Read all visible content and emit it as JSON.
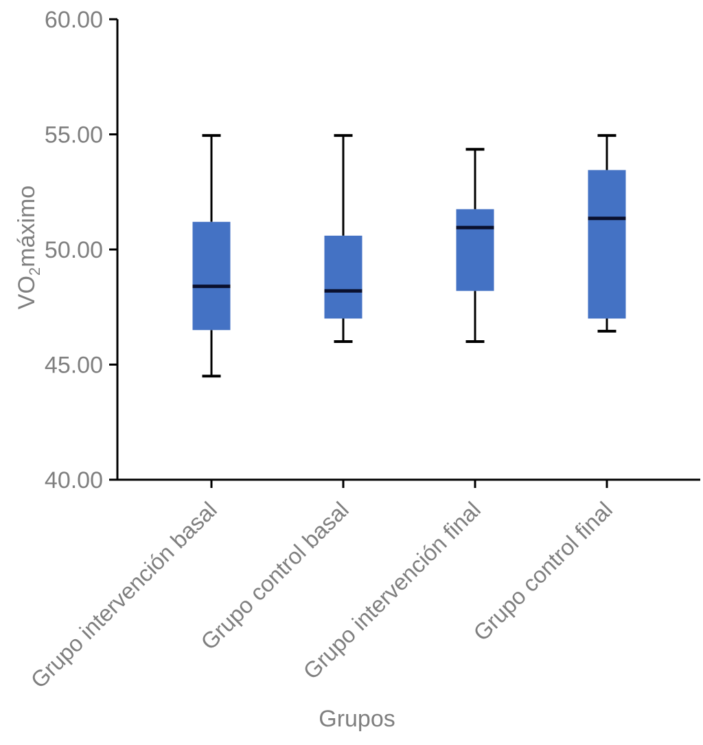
{
  "figure": {
    "background": "#FFFFFF"
  },
  "chart_data": {
    "type": "boxplot",
    "title": "",
    "xlabel": "Grupos",
    "ylabel": "VO₂máximo",
    "ylabel_parts": {
      "prefix": "VO",
      "subscript": "2",
      "suffix": "máximo"
    },
    "ylim": [
      40,
      60
    ],
    "yticks": [
      60,
      55,
      50,
      45,
      40
    ],
    "ytick_labels": [
      "60.00",
      "55.00",
      "50.00",
      "45.00",
      "40.00"
    ],
    "categories": [
      "Grupo intervención basal",
      "Grupo control basal",
      "Grupo intervención final",
      "Grupo control final"
    ],
    "boxes": [
      {
        "category": "Grupo intervención basal",
        "min": 44.5,
        "q1": 46.5,
        "median": 48.4,
        "q3": 51.2,
        "max": 54.95
      },
      {
        "category": "Grupo control basal",
        "min": 46.0,
        "q1": 47.0,
        "median": 48.2,
        "q3": 50.6,
        "max": 54.95
      },
      {
        "category": "Grupo intervención final",
        "min": 46.0,
        "q1": 48.2,
        "median": 50.95,
        "q3": 51.75,
        "max": 54.35
      },
      {
        "category": "Grupo control final",
        "min": 46.45,
        "q1": 47.0,
        "median": 51.35,
        "q3": 53.45,
        "max": 54.95
      }
    ],
    "grid": false,
    "legend": "none",
    "colors": {
      "box_fill": "#4472C4",
      "median_line": "#0A102D",
      "whisker": "#000000",
      "axis": "#000000",
      "label_text": "#7F7F7F",
      "background": "#FFFFFF"
    }
  }
}
